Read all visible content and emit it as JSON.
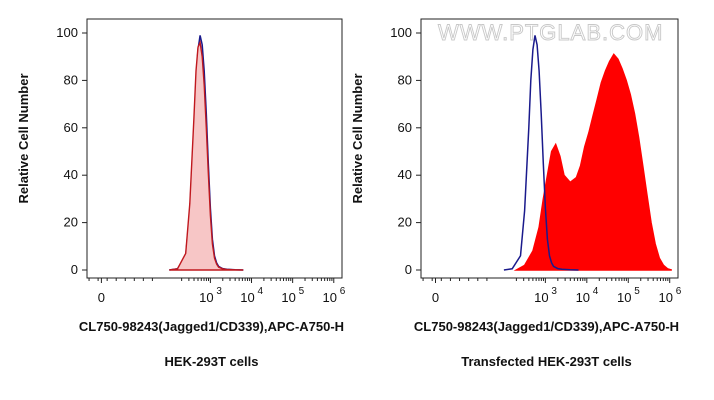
{
  "watermark": "WWW.PTGLAB.COM",
  "colors": {
    "control_line": "#1a1a8c",
    "left_fill": "#f7c6c6",
    "left_edge": "#c0181e",
    "right_fill": "#ff0000"
  },
  "chart_data": [
    {
      "type": "area",
      "panel": "left",
      "title": "",
      "xlabel": "CL750-98243(Jagged1/CD339),APC-A750-H",
      "ylabel": "Relative Cell Number",
      "caption": "HEK-293T cells",
      "x_scale": "log",
      "xlim": [
        0,
        6.2
      ],
      "ylim": [
        0,
        100
      ],
      "x_ticks": [
        {
          "mantissa": "0",
          "exp": ""
        },
        {
          "mantissa": "10",
          "exp": "3"
        },
        {
          "mantissa": "10",
          "exp": "4"
        },
        {
          "mantissa": "10",
          "exp": "5"
        },
        {
          "mantissa": "10",
          "exp": "6"
        }
      ],
      "y_ticks": [
        "0",
        "20",
        "40",
        "60",
        "80",
        "100"
      ],
      "grid": false,
      "series": [
        {
          "style": "line",
          "x": [
            2.0,
            2.2,
            2.4,
            2.5,
            2.6,
            2.65,
            2.7,
            2.75,
            2.8,
            2.85,
            2.9,
            2.95,
            3.0,
            3.05,
            3.1,
            3.15,
            3.2,
            3.3,
            3.4,
            3.6,
            3.8
          ],
          "y": [
            0,
            0.5,
            6,
            25,
            60,
            80,
            93,
            99,
            95,
            84,
            66,
            45,
            26,
            13,
            6,
            3,
            1.5,
            0.6,
            0.3,
            0.1,
            0
          ]
        },
        {
          "style": "fill",
          "x": [
            2.0,
            2.2,
            2.4,
            2.5,
            2.6,
            2.65,
            2.7,
            2.75,
            2.8,
            2.85,
            2.9,
            2.95,
            3.0,
            3.05,
            3.1,
            3.15,
            3.2,
            3.3,
            3.4,
            3.6,
            3.8
          ],
          "y": [
            0,
            0.5,
            7,
            28,
            64,
            84,
            94,
            96,
            90,
            78,
            60,
            41,
            23,
            11,
            5,
            2.5,
            1.2,
            0.5,
            0.2,
            0.1,
            0
          ]
        }
      ]
    },
    {
      "type": "area",
      "panel": "right",
      "title": "",
      "xlabel": "CL750-98243(Jagged1/CD339),APC-A750-H",
      "ylabel": "Relative Cell Number",
      "caption": "Transfected HEK-293T cells",
      "x_scale": "log",
      "xlim": [
        0,
        6.2
      ],
      "ylim": [
        0,
        100
      ],
      "x_ticks": [
        {
          "mantissa": "0",
          "exp": ""
        },
        {
          "mantissa": "10",
          "exp": "3"
        },
        {
          "mantissa": "10",
          "exp": "4"
        },
        {
          "mantissa": "10",
          "exp": "5"
        },
        {
          "mantissa": "10",
          "exp": "6"
        }
      ],
      "y_ticks": [
        "0",
        "20",
        "40",
        "60",
        "80",
        "100"
      ],
      "grid": false,
      "series": [
        {
          "style": "fill",
          "x": [
            2.3,
            2.5,
            2.7,
            2.85,
            2.95,
            3.05,
            3.15,
            3.25,
            3.35,
            3.45,
            3.6,
            3.75,
            3.85,
            3.95,
            4.05,
            4.15,
            4.25,
            4.35,
            4.45,
            4.55,
            4.65,
            4.75,
            4.85,
            4.95,
            5.05,
            5.15,
            5.25,
            5.35,
            5.45,
            5.55,
            5.65,
            5.75,
            5.85,
            5.95,
            6.05
          ],
          "y": [
            0,
            2,
            8,
            18,
            30,
            40,
            50,
            53,
            48,
            40,
            37,
            39,
            44,
            52,
            58,
            65,
            72,
            79,
            84,
            88,
            91,
            89,
            85,
            80,
            74,
            66,
            56,
            44,
            32,
            20,
            11,
            5,
            2,
            0.5,
            0
          ]
        },
        {
          "style": "line",
          "x": [
            2.0,
            2.2,
            2.4,
            2.5,
            2.6,
            2.65,
            2.7,
            2.75,
            2.8,
            2.85,
            2.9,
            2.95,
            3.0,
            3.05,
            3.1,
            3.15,
            3.2,
            3.3,
            3.4,
            3.6,
            3.8
          ],
          "y": [
            0,
            0.5,
            6,
            25,
            60,
            80,
            93,
            99,
            95,
            84,
            66,
            45,
            26,
            13,
            6,
            3,
            1.5,
            0.6,
            0.3,
            0.1,
            0
          ]
        }
      ]
    }
  ]
}
